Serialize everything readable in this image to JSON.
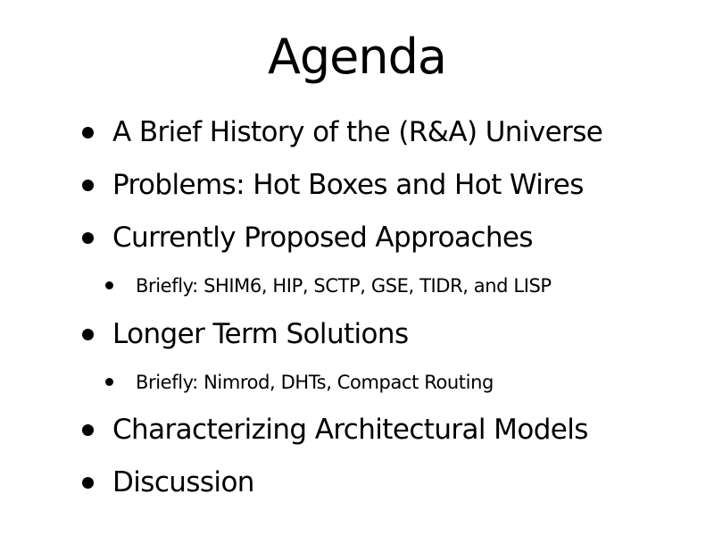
{
  "slide": {
    "title": "Agenda",
    "items": [
      {
        "level": 1,
        "text": "A Brief History of the (R&A) Universe"
      },
      {
        "level": 1,
        "text": "Problems: Hot Boxes and Hot Wires"
      },
      {
        "level": 1,
        "text": "Currently Proposed Approaches"
      },
      {
        "level": 2,
        "text": "Briefly: SHIM6,  HIP,  SCTP,  GSE,  TIDR, and LISP"
      },
      {
        "level": 1,
        "text": "Longer Term Solutions"
      },
      {
        "level": 2,
        "text": "Briefly: Nimrod,  DHTs, Compact Routing"
      },
      {
        "level": 1,
        "text": "Characterizing Architectural Models"
      },
      {
        "level": 1,
        "text": "Discussion"
      }
    ]
  }
}
